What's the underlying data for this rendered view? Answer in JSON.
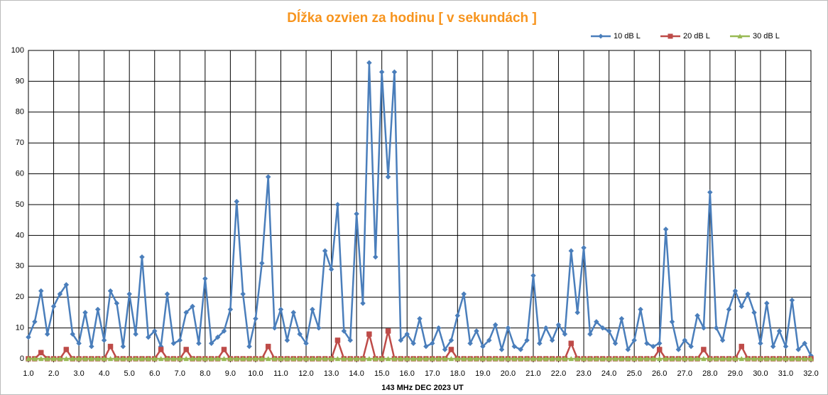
{
  "chart_data": {
    "type": "line",
    "title": "Dĺžka ozvien za hodinu [ v sekundách ]",
    "x_label": "143 MHz DEC  2023  UT",
    "x": [
      1,
      1.25,
      1.5,
      1.75,
      2,
      2.25,
      2.5,
      2.75,
      3,
      3.25,
      3.5,
      3.75,
      4,
      4.25,
      4.5,
      4.75,
      5,
      5.25,
      5.5,
      5.75,
      6,
      6.25,
      6.5,
      6.75,
      7,
      7.25,
      7.5,
      7.75,
      8,
      8.25,
      8.5,
      8.75,
      9,
      9.25,
      9.5,
      9.75,
      10,
      10.25,
      10.5,
      10.75,
      11,
      11.25,
      11.5,
      11.75,
      12,
      12.25,
      12.5,
      12.75,
      13,
      13.25,
      13.5,
      13.75,
      14,
      14.25,
      14.5,
      14.75,
      15,
      15.25,
      15.5,
      15.75,
      16,
      16.25,
      16.5,
      16.75,
      17,
      17.25,
      17.5,
      17.75,
      18,
      18.25,
      18.5,
      18.75,
      19,
      19.25,
      19.5,
      19.75,
      20,
      20.25,
      20.5,
      20.75,
      21,
      21.25,
      21.5,
      21.75,
      22,
      22.25,
      22.5,
      22.75,
      23,
      23.25,
      23.5,
      23.75,
      24,
      24.25,
      24.5,
      24.75,
      25,
      25.25,
      25.5,
      25.75,
      26,
      26.25,
      26.5,
      26.75,
      27,
      27.25,
      27.5,
      27.75,
      28,
      28.25,
      28.5,
      28.75,
      29,
      29.25,
      29.5,
      29.75,
      30,
      30.25,
      30.5,
      30.75,
      31,
      31.25,
      31.5,
      31.75,
      32
    ],
    "series": [
      {
        "name": "10 dB L",
        "color": "#4a7ebb",
        "marker": "diamond",
        "values": [
          7,
          12,
          22,
          8,
          17,
          21,
          24,
          8,
          5,
          15,
          4,
          16,
          6,
          22,
          18,
          4,
          21,
          8,
          33,
          7,
          9,
          4,
          21,
          5,
          6,
          15,
          17,
          5,
          26,
          5,
          7,
          9,
          16,
          51,
          21,
          4,
          13,
          31,
          59,
          10,
          16,
          6,
          15,
          8,
          5,
          16,
          10,
          35,
          29,
          50,
          9,
          6,
          47,
          18,
          96,
          33,
          93,
          59,
          93,
          6,
          8,
          5,
          13,
          4,
          5,
          10,
          3,
          6,
          14,
          21,
          5,
          9,
          4,
          6,
          11,
          3,
          10,
          4,
          3,
          6,
          27,
          5,
          10,
          6,
          11,
          8,
          35,
          15,
          36,
          8,
          12,
          10,
          9,
          5,
          13,
          3,
          6,
          16,
          5,
          4,
          5,
          42,
          12,
          3,
          6,
          4,
          14,
          10,
          54,
          10,
          6,
          16,
          22,
          17,
          21,
          15,
          5,
          18,
          4,
          9,
          4,
          19,
          3,
          5,
          1
        ]
      },
      {
        "name": "20 dB L",
        "color": "#be4b48",
        "marker": "square",
        "values": [
          0,
          0,
          2,
          0,
          0,
          0,
          3,
          0,
          0,
          0,
          0,
          0,
          0,
          4,
          0,
          0,
          0,
          0,
          0,
          0,
          0,
          3,
          0,
          0,
          0,
          3,
          0,
          0,
          0,
          0,
          0,
          3,
          0,
          0,
          0,
          0,
          0,
          0,
          4,
          0,
          0,
          0,
          0,
          0,
          0,
          0,
          0,
          0,
          0,
          6,
          0,
          0,
          0,
          0,
          8,
          0,
          0,
          9,
          0,
          0,
          0,
          0,
          0,
          0,
          0,
          0,
          0,
          3,
          0,
          0,
          0,
          0,
          0,
          0,
          0,
          0,
          0,
          0,
          0,
          0,
          0,
          0,
          0,
          0,
          0,
          0,
          5,
          0,
          0,
          0,
          0,
          0,
          0,
          0,
          0,
          0,
          0,
          0,
          0,
          0,
          3,
          0,
          0,
          0,
          0,
          0,
          0,
          3,
          0,
          0,
          0,
          0,
          0,
          4,
          0,
          0,
          0,
          0,
          0,
          0,
          0,
          0,
          0,
          0,
          0
        ]
      },
      {
        "name": "30 dB L",
        "color": "#98b954",
        "marker": "triangle",
        "values": [
          0,
          0,
          0,
          0,
          0,
          0,
          0,
          0,
          0,
          0,
          0,
          0,
          0,
          0,
          0,
          0,
          0,
          0,
          0,
          0,
          0,
          0,
          0,
          0,
          0,
          0,
          0,
          0,
          0,
          0,
          0,
          0,
          0,
          0,
          0,
          0,
          0,
          0,
          0,
          0,
          0,
          0,
          0,
          0,
          0,
          0,
          0,
          0,
          0,
          0,
          0,
          0,
          0,
          0,
          0,
          0,
          0,
          0,
          0,
          0,
          0,
          0,
          0,
          0,
          0,
          0,
          0,
          0,
          0,
          0,
          0,
          0,
          0,
          0,
          0,
          0,
          0,
          0,
          0,
          0,
          0,
          0,
          0,
          0,
          0,
          0,
          0,
          0,
          0,
          0,
          0,
          0,
          0,
          0,
          0,
          0,
          0,
          0,
          0,
          0,
          0,
          0,
          0,
          0,
          0,
          0,
          0,
          0,
          0,
          0,
          0,
          0,
          0,
          0,
          0,
          0,
          0,
          0,
          0,
          0,
          0,
          0,
          0,
          0,
          0
        ]
      }
    ],
    "xlim": [
      1,
      32
    ],
    "xticks": [
      {
        "value": 1,
        "label": "1.0"
      },
      {
        "value": 2,
        "label": "2.0"
      },
      {
        "value": 3,
        "label": "3.0"
      },
      {
        "value": 4,
        "label": "4.0"
      },
      {
        "value": 5,
        "label": "5.0"
      },
      {
        "value": 6,
        "label": "6.0"
      },
      {
        "value": 7,
        "label": "7.0"
      },
      {
        "value": 8,
        "label": "8.0"
      },
      {
        "value": 9,
        "label": "9.0"
      },
      {
        "value": 10,
        "label": "10.0"
      },
      {
        "value": 11,
        "label": "11.0"
      },
      {
        "value": 12,
        "label": "12.0"
      },
      {
        "value": 13,
        "label": "13.0"
      },
      {
        "value": 14,
        "label": "14.0"
      },
      {
        "value": 15,
        "label": "15.0"
      },
      {
        "value": 16,
        "label": "16.0"
      },
      {
        "value": 17,
        "label": "17.0"
      },
      {
        "value": 18,
        "label": "18.0"
      },
      {
        "value": 19,
        "label": "19.0"
      },
      {
        "value": 20,
        "label": "20.0"
      },
      {
        "value": 21,
        "label": "21.0"
      },
      {
        "value": 22,
        "label": "22.0"
      },
      {
        "value": 23,
        "label": "23.0"
      },
      {
        "value": 24,
        "label": "24.0"
      },
      {
        "value": 25,
        "label": "25.0"
      },
      {
        "value": 26,
        "label": "26.0"
      },
      {
        "value": 27,
        "label": "27.0"
      },
      {
        "value": 28,
        "label": "28.0"
      },
      {
        "value": 29,
        "label": "29.0"
      },
      {
        "value": 30,
        "label": "30.0"
      },
      {
        "value": 31,
        "label": "31.0"
      },
      {
        "value": 32,
        "label": "32.0"
      }
    ],
    "ylim": [
      0,
      100
    ],
    "yticks": [
      0,
      10,
      20,
      30,
      40,
      50,
      60,
      70,
      80,
      90,
      100
    ],
    "grid": true,
    "legend": "top-right"
  }
}
